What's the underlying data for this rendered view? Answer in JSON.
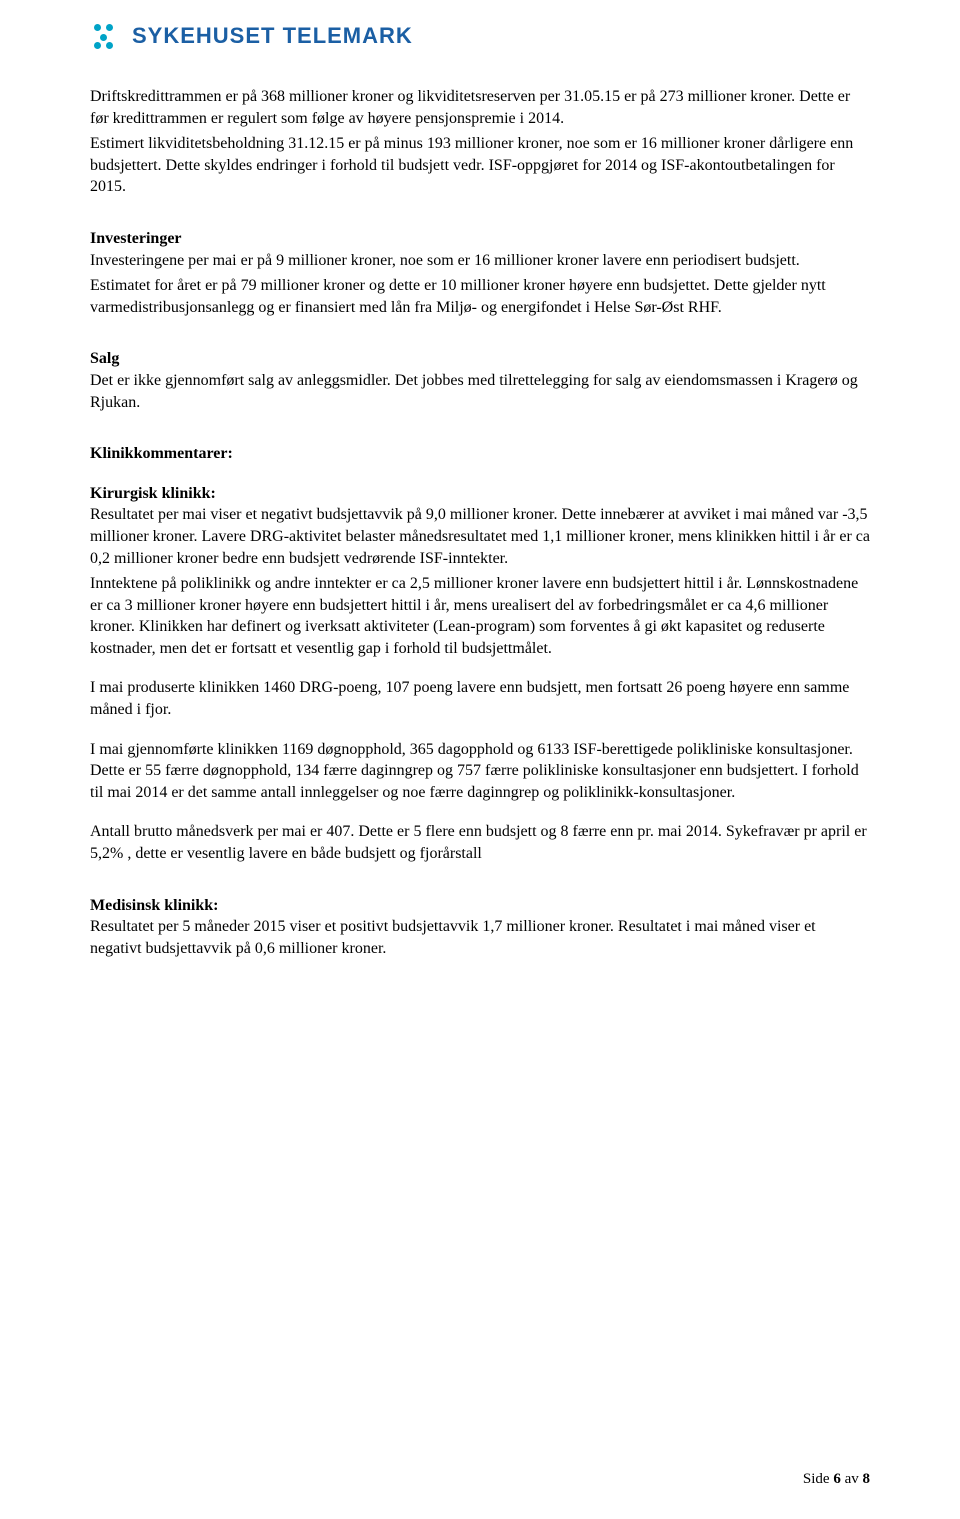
{
  "logo": {
    "brand": "SYKEHUSET TELEMARK"
  },
  "p1": "Driftskredittrammen er på 368 millioner kroner og likviditetsreserven per 31.05.15 er på 273 millioner kroner. Dette er før kredittrammen er regulert som følge av høyere pensjonspremie i 2014.",
  "p2": "Estimert likviditetsbeholdning 31.12.15 er på minus 193 millioner kroner, noe som er 16 millioner kroner dårligere enn budsjettert. Dette skyldes endringer i forhold til budsjett vedr. ISF-oppgjøret for 2014 og ISF-akontoutbetalingen for 2015.",
  "invest_h": "Investeringer",
  "invest_p1": "Investeringene per mai er på 9 millioner kroner, noe som er 16 millioner kroner lavere enn periodisert budsjett.",
  "invest_p2": "Estimatet for året er på 79 millioner kroner og dette er 10 millioner kroner høyere enn budsjettet. Dette gjelder nytt varmedistribusjonsanlegg og er finansiert med lån fra Miljø- og energifondet i Helse Sør-Øst RHF.",
  "salg_h": "Salg",
  "salg_p": "Det er ikke gjennomført salg av anleggsmidler. Det jobbes med tilrettelegging for salg av eiendomsmassen i Kragerø og Rjukan.",
  "klinikk_h": "Klinikkommentarer:",
  "kir_h": "Kirurgisk klinikk:",
  "kir_p1": "Resultatet per mai viser et negativt budsjettavvik på 9,0 millioner kroner. Dette innebærer at avviket i mai måned var -3,5 millioner kroner. Lavere DRG-aktivitet belaster månedsresultatet med 1,1 millioner kroner, mens klinikken hittil i år er ca 0,2 millioner kroner bedre enn budsjett vedrørende ISF-inntekter.",
  "kir_p2": "Inntektene på poliklinikk og andre inntekter er ca 2,5 millioner kroner lavere enn budsjettert hittil i år. Lønnskostnadene er ca 3 millioner kroner høyere enn budsjettert hittil i år, mens urealisert del av forbedringsmålet er ca 4,6 millioner kroner. Klinikken har definert og iverksatt aktiviteter (Lean-program) som forventes å gi økt kapasitet og reduserte kostnader, men det er fortsatt et vesentlig gap i forhold til budsjettmålet.",
  "kir_p3": "I mai produserte klinikken 1460 DRG-poeng, 107 poeng lavere enn budsjett, men fortsatt 26 poeng høyere enn samme måned i fjor.",
  "kir_p4": " I mai gjennomførte klinikken 1169 døgnopphold, 365 dagopphold og 6133 ISF-berettigede polikliniske konsultasjoner. Dette er 55 færre døgnopphold, 134 færre daginngrep og 757 færre polikliniske konsultasjoner enn budsjettert. I forhold til mai 2014 er det samme antall innleggelser og noe færre daginngrep og poliklinikk-konsultasjoner.",
  "kir_p5": "Antall brutto månedsverk per mai er 407. Dette er 5 flere enn budsjett og 8 færre enn pr. mai 2014. Sykefravær pr april er 5,2% , dette er vesentlig lavere en både budsjett og fjorårstall",
  "med_h": "Medisinsk klinikk:",
  "med_p": "Resultatet per 5 måneder 2015 viser et positivt budsjettavvik 1,7 millioner kroner. Resultatet i mai måned viser et negativt budsjettavvik på 0,6 millioner kroner.",
  "footer": {
    "prefix": "Side ",
    "page": "6",
    "mid": " av ",
    "total": "8"
  }
}
